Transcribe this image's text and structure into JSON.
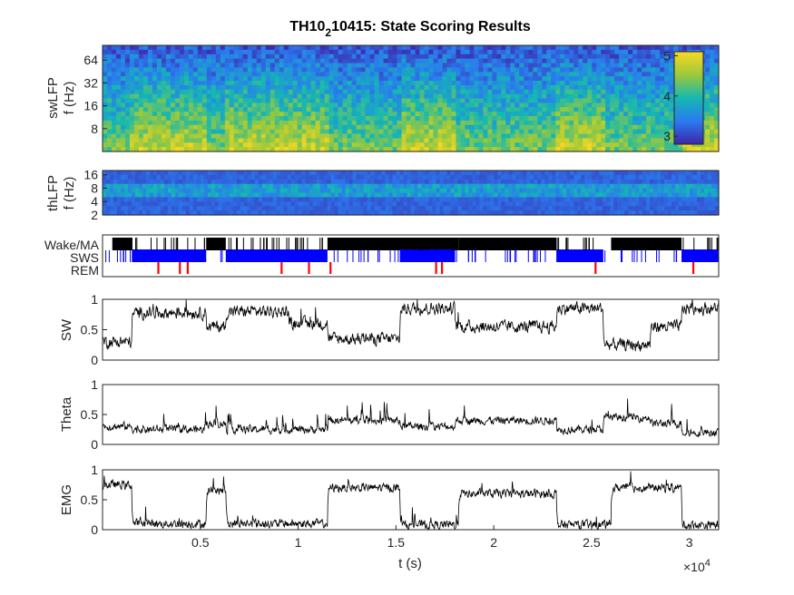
{
  "figure": {
    "title_main": "TH10",
    "title_sub": "2",
    "title_rest": "10415: State Scoring Results"
  },
  "chart_data": [
    {
      "type": "heatmap",
      "ylabel_1": "swLFP",
      "ylabel_2": "f (Hz)",
      "yscale": "log",
      "ylim": [
        4,
        100
      ],
      "ytick_values": [
        8,
        16,
        32,
        64
      ],
      "ytick_labels": [
        "8",
        "16",
        "32",
        "64"
      ],
      "xlim": [
        0,
        31500
      ],
      "colorbar": {
        "clim": [
          2.8,
          5.1
        ],
        "tick_values": [
          3,
          4,
          5
        ],
        "tick_labels": [
          "3",
          "4",
          "5"
        ]
      }
    },
    {
      "type": "heatmap",
      "ylabel_1": "thLFP",
      "ylabel_2": "f (Hz)",
      "yscale": "log",
      "ylim": [
        2,
        20
      ],
      "ytick_values": [
        2,
        4,
        8,
        16
      ],
      "ytick_labels": [
        "2",
        "4",
        "8",
        "16"
      ],
      "xlim": [
        0,
        31500
      ]
    },
    {
      "type": "raster",
      "state_labels": [
        "Wake/MA",
        "SWS",
        "REM"
      ],
      "state_colors": [
        "#000000",
        "#0000ff",
        "#ff0000"
      ],
      "xlim": [
        0,
        31500
      ],
      "wake": [
        [
          500,
          1500
        ],
        [
          5300,
          6300
        ],
        [
          11500,
          18200
        ],
        [
          18200,
          23200
        ],
        [
          26000,
          29600
        ]
      ],
      "sws": [
        [
          1500,
          5300
        ],
        [
          6300,
          11500
        ],
        [
          15200,
          18000
        ],
        [
          23200,
          25600
        ],
        [
          29600,
          31500
        ]
      ],
      "rem": [
        2850,
        3950,
        4350,
        9150,
        10550,
        11650,
        17050,
        17350,
        25200,
        30200
      ]
    },
    {
      "type": "line",
      "ylabel": "SW",
      "ylim": [
        0,
        1
      ],
      "ytick_values": [
        0,
        0.5,
        1
      ],
      "ytick_labels": [
        "0",
        "0.5",
        "1"
      ],
      "xlim": [
        0,
        31500
      ],
      "levels": [
        [
          0,
          0.3
        ],
        [
          1500,
          0.78
        ],
        [
          5300,
          0.55
        ],
        [
          6300,
          0.8
        ],
        [
          9500,
          0.6
        ],
        [
          11500,
          0.35
        ],
        [
          15200,
          0.85
        ],
        [
          18000,
          0.55
        ],
        [
          23200,
          0.85
        ],
        [
          25600,
          0.25
        ],
        [
          28000,
          0.55
        ],
        [
          29600,
          0.85
        ],
        [
          31500,
          0.85
        ]
      ]
    },
    {
      "type": "line",
      "ylabel": "Theta",
      "ylim": [
        0,
        1
      ],
      "ytick_values": [
        0,
        0.5,
        1
      ],
      "ytick_labels": [
        "0",
        "0.5",
        "1"
      ],
      "xlim": [
        0,
        31500
      ],
      "levels": [
        [
          0,
          0.3
        ],
        [
          1500,
          0.25
        ],
        [
          5300,
          0.35
        ],
        [
          6300,
          0.25
        ],
        [
          11500,
          0.4
        ],
        [
          15200,
          0.3
        ],
        [
          18000,
          0.4
        ],
        [
          23200,
          0.25
        ],
        [
          25600,
          0.45
        ],
        [
          28000,
          0.35
        ],
        [
          29600,
          0.2
        ],
        [
          31500,
          0.2
        ]
      ]
    },
    {
      "type": "line",
      "ylabel": "EMG",
      "ylim": [
        0,
        1
      ],
      "ytick_values": [
        0,
        0.5,
        1
      ],
      "ytick_labels": [
        "0",
        "0.5",
        "1"
      ],
      "xlim": [
        0,
        31500
      ],
      "xlabel": "t (s)",
      "xtick_values": [
        5000,
        10000,
        15000,
        20000,
        25000,
        30000
      ],
      "xtick_labels": [
        "0.5",
        "1",
        "1.5",
        "2",
        "2.5",
        "3"
      ],
      "x_exponent_base": "×10",
      "x_exponent_power": "4",
      "levels": [
        [
          0,
          0.75
        ],
        [
          1500,
          0.1
        ],
        [
          5300,
          0.65
        ],
        [
          6300,
          0.1
        ],
        [
          11500,
          0.7
        ],
        [
          15200,
          0.08
        ],
        [
          18200,
          0.6
        ],
        [
          23200,
          0.08
        ],
        [
          26000,
          0.7
        ],
        [
          29600,
          0.08
        ],
        [
          31500,
          0.08
        ]
      ]
    }
  ]
}
